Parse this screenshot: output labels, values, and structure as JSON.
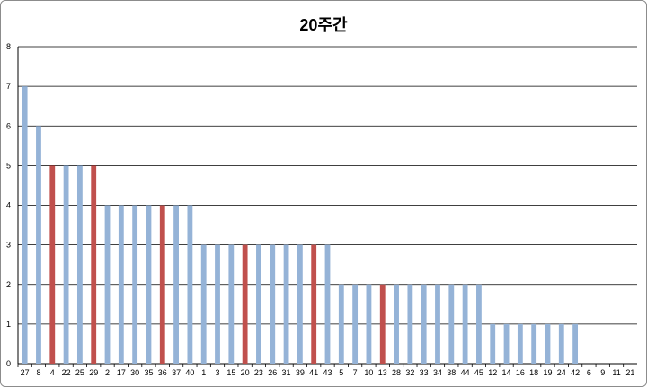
{
  "chart_data": {
    "type": "bar",
    "title": "20주간",
    "xlabel": "",
    "ylabel": "",
    "ylim": [
      0,
      8
    ],
    "yticks": [
      "0",
      "1",
      "2",
      "3",
      "4",
      "5",
      "6",
      "7",
      "8"
    ],
    "grid": true,
    "legend": "none",
    "categories": [
      "27",
      "8",
      "4",
      "22",
      "25",
      "29",
      "2",
      "17",
      "30",
      "35",
      "36",
      "37",
      "40",
      "1",
      "3",
      "15",
      "20",
      "23",
      "26",
      "31",
      "39",
      "41",
      "43",
      "5",
      "7",
      "10",
      "13",
      "28",
      "32",
      "33",
      "34",
      "38",
      "44",
      "45",
      "12",
      "14",
      "16",
      "18",
      "19",
      "24",
      "42",
      "6",
      "9",
      "11",
      "21"
    ],
    "values": [
      7,
      6,
      5,
      5,
      5,
      5,
      4,
      4,
      4,
      4,
      4,
      4,
      4,
      3,
      3,
      3,
      3,
      3,
      3,
      3,
      3,
      3,
      3,
      2,
      2,
      2,
      2,
      2,
      2,
      2,
      2,
      2,
      2,
      2,
      1,
      1,
      1,
      1,
      1,
      1,
      1,
      0,
      0,
      0,
      0
    ],
    "highlighted": [
      "4",
      "29",
      "36",
      "20",
      "41",
      "13"
    ],
    "colors": {
      "bar": "#95b3d7",
      "highlight": "#c0504d",
      "grid": "#000000"
    }
  }
}
